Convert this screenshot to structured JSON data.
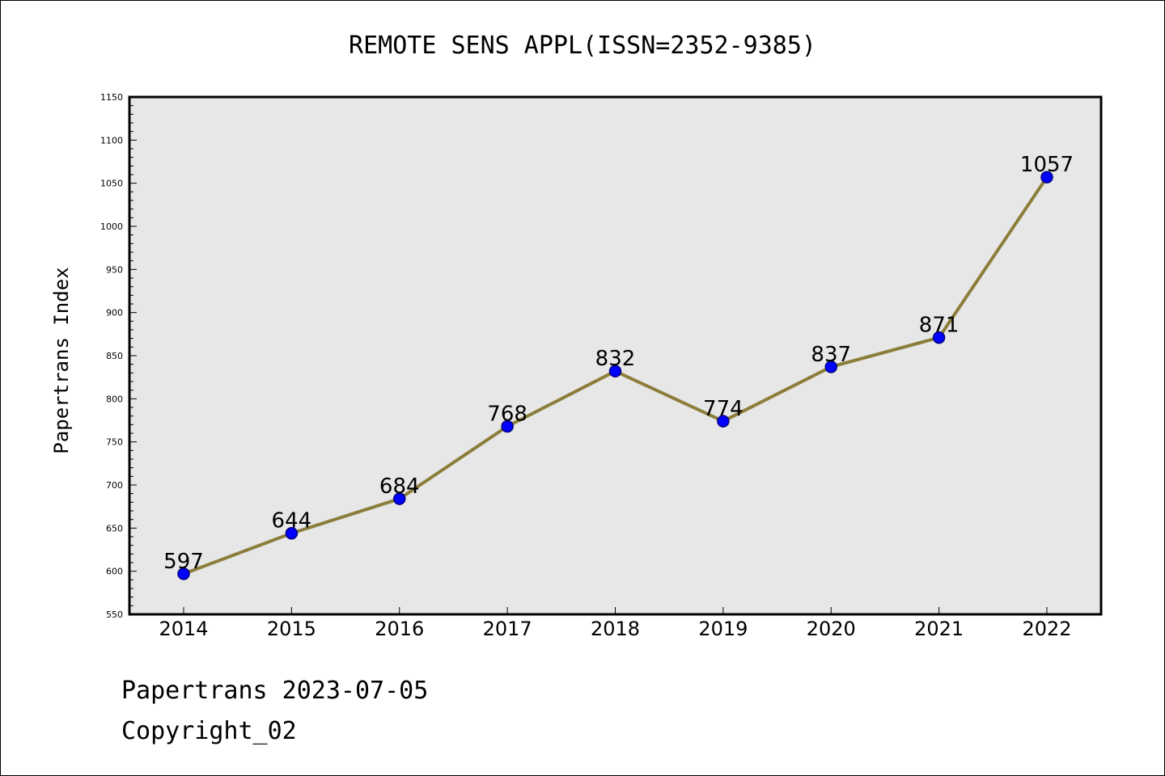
{
  "chart_data": {
    "type": "line",
    "title": "REMOTE SENS APPL(ISSN=2352-9385)",
    "xlabel": "",
    "ylabel": "Papertrans Index",
    "categories": [
      "2014",
      "2015",
      "2016",
      "2017",
      "2018",
      "2019",
      "2020",
      "2021",
      "2022"
    ],
    "series": [
      {
        "values": [
          597,
          644,
          684,
          768,
          832,
          774,
          837,
          871,
          1057
        ],
        "labels": [
          "597",
          "644",
          "684",
          "768",
          "832",
          "774",
          "837",
          "871",
          "1057"
        ]
      }
    ],
    "ylim": [
      550,
      1150
    ],
    "yticks": [
      "550",
      "600",
      "650",
      "700",
      "750",
      "800",
      "850",
      "900",
      "950",
      "1000",
      "1050",
      "1100",
      "1150"
    ],
    "grid": false,
    "legend": "none",
    "colors": {
      "line": "#8b7d3a",
      "marker_fill": "#0000ff",
      "marker_edge": "#000080",
      "plot_background": "#e7e7e7"
    }
  },
  "footer": {
    "line1": "Papertrans 2023-07-05",
    "line2": "Copyright_02"
  }
}
